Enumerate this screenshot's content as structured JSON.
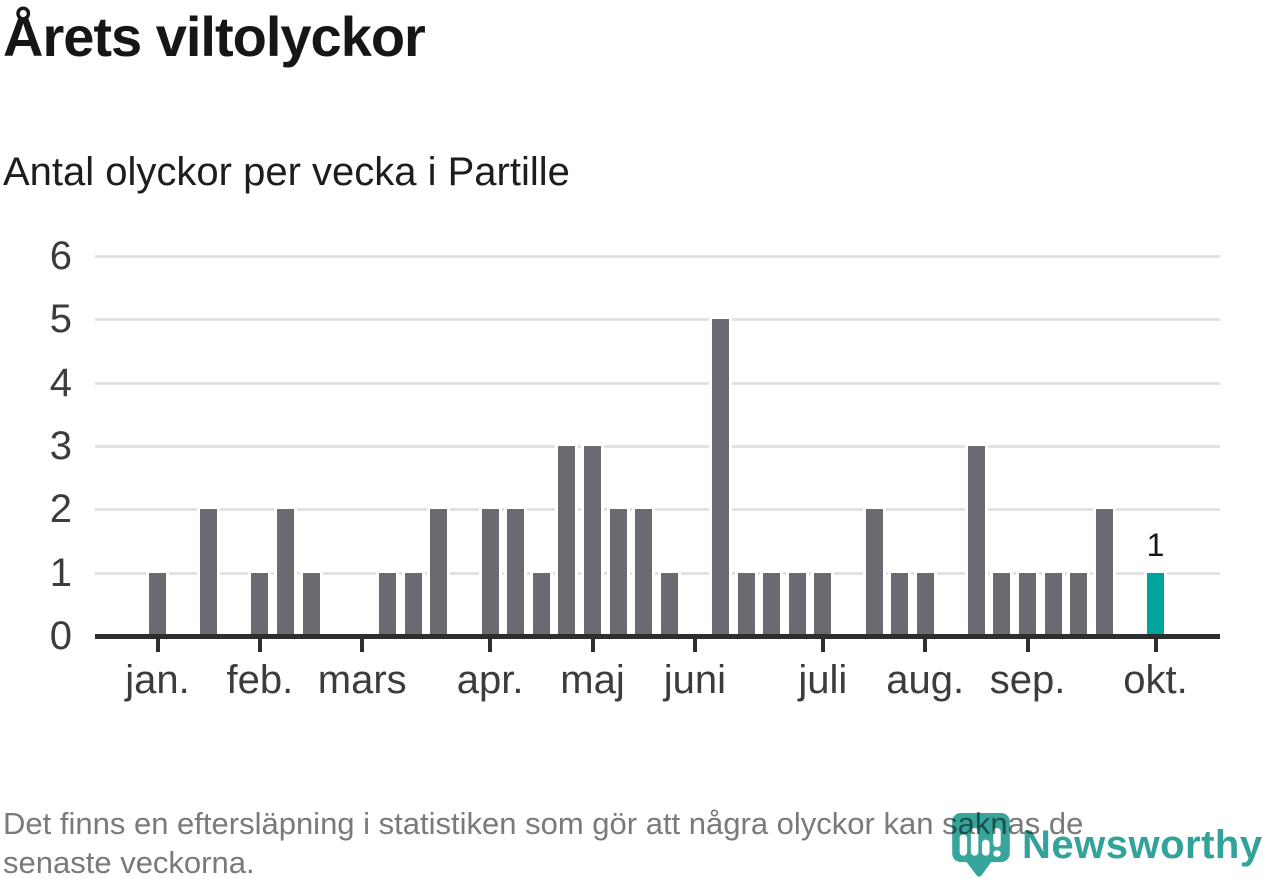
{
  "header": {
    "title": "Årets viltolyckor"
  },
  "chart_data": {
    "type": "bar",
    "title": "Antal olyckor per vecka i Partille",
    "x_unit": "vecka (en stapel per vecka, jan.–okt.)",
    "ylabel": "",
    "xlabel": "",
    "values": [
      1,
      0,
      2,
      0,
      1,
      2,
      1,
      0,
      0,
      1,
      1,
      2,
      0,
      2,
      2,
      1,
      3,
      3,
      2,
      2,
      1,
      0,
      5,
      1,
      1,
      1,
      1,
      0,
      2,
      1,
      1,
      0,
      3,
      1,
      1,
      1,
      1,
      2,
      0,
      1
    ],
    "yticks": [
      0,
      1,
      2,
      3,
      4,
      5,
      6
    ],
    "ylim": [
      0,
      6
    ],
    "month_ticks": [
      {
        "label": "jan.",
        "slot": 0
      },
      {
        "label": "feb.",
        "slot": 4
      },
      {
        "label": "mars",
        "slot": 8
      },
      {
        "label": "apr.",
        "slot": 13
      },
      {
        "label": "maj",
        "slot": 17
      },
      {
        "label": "juni",
        "slot": 21
      },
      {
        "label": "juli",
        "slot": 26
      },
      {
        "label": "aug.",
        "slot": 30
      },
      {
        "label": "sep.",
        "slot": 34
      },
      {
        "label": "okt.",
        "slot": 39
      }
    ],
    "bar_color": "#6c6a70",
    "highlight": {
      "slot": 39,
      "label": "1",
      "color": "#00a49c"
    },
    "grid": true,
    "legend": "none"
  },
  "footer": {
    "note": "Det finns en eftersläpning i statistiken som gör att några olyckor kan saknas de senaste veckorna."
  },
  "logo": {
    "text": "Newsworthy",
    "color": "#33a29a",
    "icon_color": "#38a59d"
  }
}
